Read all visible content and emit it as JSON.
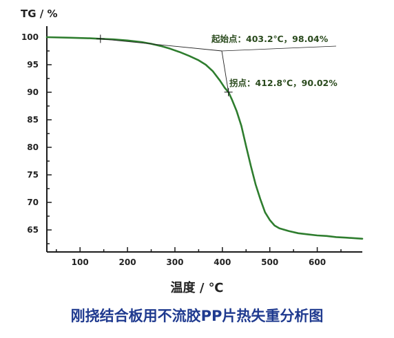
{
  "chart_data": {
    "type": "line",
    "title": "刚挠结合板用不流胶PP片热失重分析图",
    "xlabel": "温度 / ℃",
    "ylabel": "TG / %",
    "xlim": [
      30,
      695
    ],
    "ylim": [
      61,
      101.5
    ],
    "x_ticks": [
      100,
      200,
      300,
      400,
      500,
      600
    ],
    "y_ticks": [
      65,
      70,
      75,
      80,
      85,
      90,
      95,
      100
    ],
    "grid": false,
    "colors": {
      "series": "#2e7d2e",
      "axes": "#1a1a1a",
      "annotation": "#2a4a1d",
      "caption": "#1f3a8f"
    },
    "series": [
      {
        "x": [
          30,
          80,
          120,
          145,
          170,
          200,
          230,
          250,
          270,
          290,
          310,
          330,
          350,
          365,
          380,
          395,
          405,
          413,
          420,
          430,
          440,
          450,
          460,
          470,
          480,
          490,
          500,
          510,
          520,
          540,
          560,
          580,
          600,
          620,
          640,
          660,
          695
        ],
        "y": [
          100,
          99.9,
          99.8,
          99.7,
          99.6,
          99.4,
          99.1,
          98.8,
          98.4,
          97.9,
          97.3,
          96.6,
          95.8,
          95.0,
          93.8,
          92.1,
          90.8,
          90.0,
          88.7,
          86.6,
          83.9,
          80.2,
          76.6,
          73.3,
          70.6,
          68.2,
          66.8,
          65.8,
          65.3,
          64.8,
          64.4,
          64.2,
          64.0,
          63.9,
          63.7,
          63.6,
          63.4
        ]
      }
    ],
    "markers": [
      {
        "x": 143,
        "y": 99.7
      },
      {
        "x": 412.8,
        "y": 90.02
      }
    ],
    "annotations": [
      {
        "text": "起始点：403.2℃，98.04%",
        "x": 403.2,
        "y": 98.04
      },
      {
        "text": "拐点：412.8℃，90.02%",
        "x": 412.8,
        "y": 90.02
      }
    ]
  }
}
